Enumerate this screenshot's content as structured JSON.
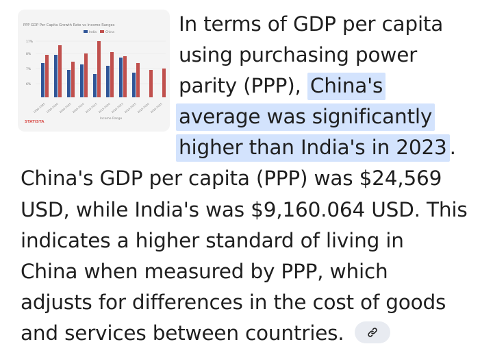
{
  "thumbnail": {
    "title": "PPP GDP Per Capita Growth Rate vs Income Ranges",
    "legend": [
      "India",
      "China"
    ],
    "y_ticks": [
      "17%",
      "8%",
      "7%",
      "6%"
    ],
    "x_ticks": [
      "1990-1995",
      "1995-2000",
      "2000-2005",
      "2005-2010",
      "2010-2015",
      "2015-2020",
      "2020-2023",
      "2023-2025",
      "2025-2030",
      "2030-2035"
    ],
    "x_label": "Income Range",
    "watermark": "STATISTA"
  },
  "answer": {
    "lines": [
      "In terms of GDP per capita",
      "using purchasing power",
      "parity (PPP), "
    ],
    "highlight_lines": [
      "China's",
      "average was significantly",
      "higher than India's in 2023"
    ],
    "highlight_tail": ".",
    "body_lines": [
      "China's GDP per capita (PPP) was $24,569",
      "USD, while India's was $9,160.064 USD. This",
      "indicates a higher standard of living in",
      "China when measured by PPP, which",
      "adjusts for differences in the cost of goods",
      "and services between countries."
    ]
  },
  "colors": {
    "text": "#1f1f1f",
    "highlight": "#d3e3fd",
    "bar_india": "#2f5597",
    "bar_china": "#c0504d",
    "chip_bg": "#e8ebf1"
  },
  "icons": {
    "link": "link-icon"
  }
}
